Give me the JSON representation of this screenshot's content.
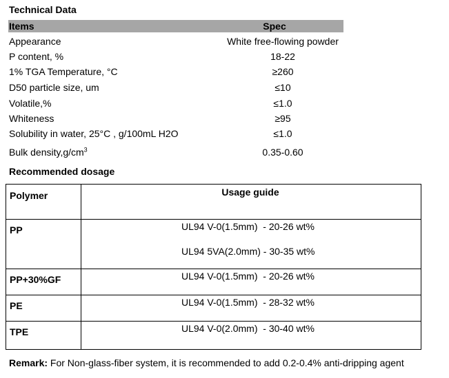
{
  "header": {
    "title": "Technical Data"
  },
  "spec_table": {
    "headers": [
      "Items",
      "Spec"
    ],
    "rows": [
      {
        "item": "Appearance",
        "spec": "White free-flowing powder"
      },
      {
        "item": "P content, %",
        "spec": "18-22"
      },
      {
        "item": "1% TGA Temperature, °C",
        "spec": "≥260"
      },
      {
        "item": "D50 particle size, um",
        "spec": "≤10"
      },
      {
        "item": "Volatile,%",
        "spec": "≤1.0"
      },
      {
        "item": "Whiteness",
        "spec": "≥95"
      },
      {
        "item": "Solubility in water, 25°C , g/100mL H2O",
        "spec": "≤1.0"
      },
      {
        "item": "Bulk density,g/cm",
        "item_sup": "3",
        "spec": "0.35-0.60"
      }
    ]
  },
  "dosage": {
    "title": "Recommended dosage",
    "headers": [
      "Polymer",
      "Usage guide"
    ],
    "rows": [
      {
        "polymer": "PP",
        "guides": [
          "UL94 V-0(1.5mm)  - 20-26 wt%",
          "UL94 5VA(2.0mm) - 30-35 wt%"
        ]
      },
      {
        "polymer": "PP+30%GF",
        "guides": [
          "UL94 V-0(1.5mm)  - 20-26 wt%"
        ]
      },
      {
        "polymer": "PE",
        "guides": [
          "UL94 V-0(1.5mm)  - 28-32 wt%"
        ]
      },
      {
        "polymer": "TPE",
        "guides": [
          "UL94 V-0(2.0mm)  - 30-40 wt%"
        ]
      }
    ]
  },
  "remark": {
    "label": "Remark:",
    "text": "For Non-glass-fiber system, it is recommended to add 0.2-0.4% anti-dripping agent"
  }
}
